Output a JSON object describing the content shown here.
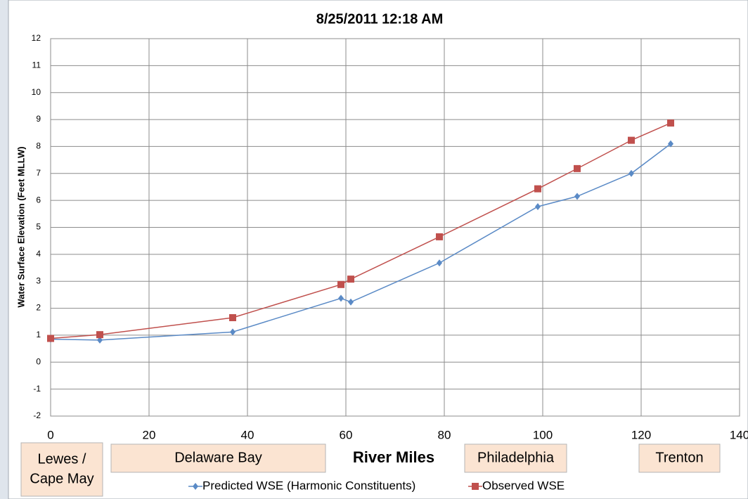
{
  "chart_data": {
    "type": "line",
    "title": "8/25/2011 12:18 AM",
    "x_label": "River Miles",
    "y_label": "Water Surface Elevation (Feet MLLW)",
    "xlim": [
      0,
      140
    ],
    "xticks": [
      0,
      20,
      40,
      60,
      80,
      100,
      120,
      140
    ],
    "ylim": [
      -2,
      12
    ],
    "yticks": [
      -2,
      -1,
      0,
      1,
      2,
      3,
      4,
      5,
      6,
      7,
      8,
      9,
      10,
      11,
      12
    ],
    "grid": true,
    "legend": "bottom",
    "series": [
      {
        "name": "Predicted WSE (Harmonic Constituents)",
        "color": "#5a8ac6",
        "marker": "diamond",
        "x": [
          0,
          10,
          37,
          59,
          61,
          79,
          99,
          107,
          118,
          126
        ],
        "values": [
          0.85,
          0.82,
          1.12,
          2.37,
          2.23,
          3.68,
          5.77,
          6.15,
          7.0,
          8.1
        ]
      },
      {
        "name": "Observed WSE",
        "color": "#c0504d",
        "marker": "square",
        "x": [
          0,
          10,
          37,
          59,
          61,
          79,
          99,
          107,
          118,
          126
        ],
        "values": [
          0.88,
          1.02,
          1.65,
          2.88,
          3.08,
          4.65,
          6.43,
          7.18,
          8.23,
          8.87
        ]
      }
    ],
    "annotations": [
      [
        "Lewes /",
        "Cape May"
      ],
      [
        "Delaware Bay"
      ],
      [
        "Philadelphia"
      ],
      [
        "Trenton"
      ]
    ]
  }
}
